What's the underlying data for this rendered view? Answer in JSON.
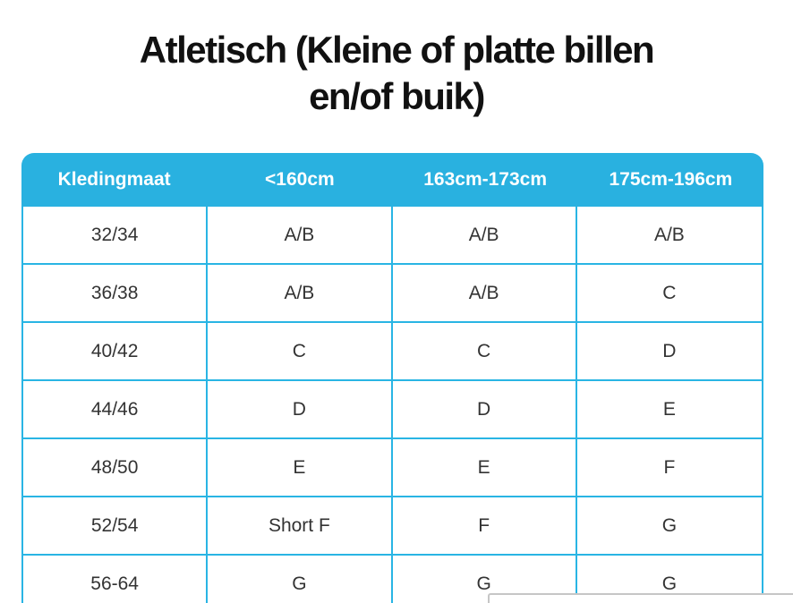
{
  "title": {
    "line1": "Atletisch (Kleine of platte billen",
    "line2": "en/of buik)"
  },
  "table": {
    "headers": [
      "Kledingmaat",
      "<160cm",
      "163cm-173cm",
      "175cm-196cm"
    ],
    "rows": [
      [
        "32/34",
        "A/B",
        "A/B",
        "A/B"
      ],
      [
        "36/38",
        "A/B",
        "A/B",
        "C"
      ],
      [
        "40/42",
        "C",
        "C",
        "D"
      ],
      [
        "44/46",
        "D",
        "D",
        "E"
      ],
      [
        "48/50",
        "E",
        "E",
        "F"
      ],
      [
        "52/54",
        "Short F",
        "F",
        "G"
      ],
      [
        "56-64",
        "G",
        "G",
        "G"
      ]
    ],
    "colors": {
      "header_bg": "#29b1e0",
      "border": "#29b5e4",
      "header_text": "#ffffff",
      "cell_text": "#333333",
      "title_text": "#111111"
    }
  }
}
